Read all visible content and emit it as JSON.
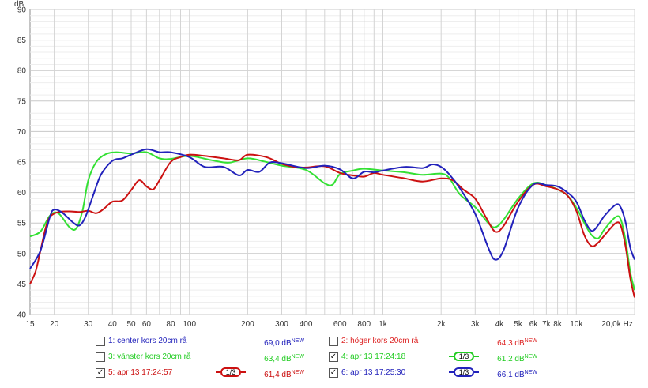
{
  "chart_data": {
    "type": "line",
    "ylabel": "dB",
    "xlabel": "",
    "x_scale": "log",
    "xlim": [
      15,
      20000
    ],
    "ylim": [
      40,
      90
    ],
    "grid": true,
    "y_ticks": [
      90,
      85,
      80,
      75,
      70,
      65,
      60,
      55,
      50,
      45,
      40
    ],
    "x_ticks": [
      {
        "v": 15,
        "t": "15"
      },
      {
        "v": 20,
        "t": "20"
      },
      {
        "v": 30,
        "t": "30"
      },
      {
        "v": 40,
        "t": "40"
      },
      {
        "v": 50,
        "t": "50"
      },
      {
        "v": 60,
        "t": "60"
      },
      {
        "v": 80,
        "t": "80"
      },
      {
        "v": 100,
        "t": "100"
      },
      {
        "v": 200,
        "t": "200"
      },
      {
        "v": 300,
        "t": "300"
      },
      {
        "v": 400,
        "t": "400"
      },
      {
        "v": 600,
        "t": "600"
      },
      {
        "v": 800,
        "t": "800"
      },
      {
        "v": 1000,
        "t": "1k"
      },
      {
        "v": 2000,
        "t": "2k"
      },
      {
        "v": 3000,
        "t": "3k"
      },
      {
        "v": 4000,
        "t": "4k"
      },
      {
        "v": 5000,
        "t": "5k"
      },
      {
        "v": 6000,
        "t": "6k"
      },
      {
        "v": 7000,
        "t": "7k"
      },
      {
        "v": 8000,
        "t": "8k"
      },
      {
        "v": 10000,
        "t": "10k"
      },
      {
        "v": 20000,
        "t": "20,0k Hz"
      }
    ],
    "series": [
      {
        "name": "3: vänster kors 20cm rå",
        "color": "#33e033",
        "points": [
          [
            15,
            52.8
          ],
          [
            17,
            53.6
          ],
          [
            19,
            56.2
          ],
          [
            21,
            56.6
          ],
          [
            24,
            54.3
          ],
          [
            26,
            54.1
          ],
          [
            28,
            57
          ],
          [
            30,
            62
          ],
          [
            33,
            65
          ],
          [
            37,
            66.3
          ],
          [
            42,
            66.6
          ],
          [
            50,
            66.4
          ],
          [
            60,
            66.6
          ],
          [
            70,
            65.6
          ],
          [
            80,
            65.5
          ],
          [
            100,
            66
          ],
          [
            130,
            65.3
          ],
          [
            160,
            64.9
          ],
          [
            200,
            65.6
          ],
          [
            250,
            65
          ],
          [
            300,
            64.4
          ],
          [
            400,
            63.7
          ],
          [
            500,
            61.5
          ],
          [
            550,
            61.3
          ],
          [
            600,
            63
          ],
          [
            700,
            63.6
          ],
          [
            800,
            63.9
          ],
          [
            1000,
            63.6
          ],
          [
            1300,
            63.3
          ],
          [
            1600,
            62.9
          ],
          [
            2000,
            63.1
          ],
          [
            2200,
            62.4
          ],
          [
            2500,
            59.7
          ],
          [
            3000,
            57.6
          ],
          [
            3500,
            55
          ],
          [
            3800,
            54.3
          ],
          [
            4200,
            55.5
          ],
          [
            5000,
            59
          ],
          [
            6000,
            61.5
          ],
          [
            7000,
            61.2
          ],
          [
            8000,
            60.5
          ],
          [
            9000,
            59.5
          ],
          [
            10000,
            57.5
          ],
          [
            11000,
            55
          ],
          [
            12000,
            53
          ],
          [
            13000,
            52.5
          ],
          [
            14000,
            54
          ],
          [
            16000,
            56
          ],
          [
            17000,
            55.5
          ],
          [
            18000,
            52
          ],
          [
            19000,
            47
          ],
          [
            20000,
            44
          ]
        ]
      },
      {
        "name": "5: apr 13 17:24:57",
        "color": "#cc1111",
        "points": [
          [
            15,
            45
          ],
          [
            16,
            47
          ],
          [
            17,
            50.5
          ],
          [
            18,
            54
          ],
          [
            19,
            56
          ],
          [
            21,
            56.8
          ],
          [
            24,
            56.9
          ],
          [
            27,
            56.8
          ],
          [
            30,
            57
          ],
          [
            33,
            56.6
          ],
          [
            36,
            57.3
          ],
          [
            40,
            58.5
          ],
          [
            45,
            58.7
          ],
          [
            50,
            60.4
          ],
          [
            55,
            62
          ],
          [
            60,
            61
          ],
          [
            65,
            60.5
          ],
          [
            70,
            62
          ],
          [
            80,
            65
          ],
          [
            90,
            65.8
          ],
          [
            100,
            66.2
          ],
          [
            120,
            66
          ],
          [
            150,
            65.6
          ],
          [
            180,
            65.3
          ],
          [
            200,
            66.2
          ],
          [
            250,
            65.8
          ],
          [
            300,
            64.7
          ],
          [
            350,
            64.2
          ],
          [
            400,
            64.1
          ],
          [
            500,
            64.3
          ],
          [
            600,
            63.2
          ],
          [
            700,
            62.8
          ],
          [
            800,
            62.6
          ],
          [
            900,
            63.2
          ],
          [
            1000,
            62.9
          ],
          [
            1300,
            62.3
          ],
          [
            1600,
            61.8
          ],
          [
            2000,
            62.3
          ],
          [
            2300,
            62
          ],
          [
            2600,
            60.5
          ],
          [
            3000,
            59
          ],
          [
            3400,
            56
          ],
          [
            3800,
            53.6
          ],
          [
            4200,
            54.5
          ],
          [
            5000,
            58.5
          ],
          [
            6000,
            61.3
          ],
          [
            7000,
            61
          ],
          [
            8000,
            60.5
          ],
          [
            9000,
            59.5
          ],
          [
            10000,
            57
          ],
          [
            11000,
            53
          ],
          [
            12000,
            51.2
          ],
          [
            13000,
            51.8
          ],
          [
            14000,
            53
          ],
          [
            16000,
            55
          ],
          [
            17000,
            54.5
          ],
          [
            18000,
            51
          ],
          [
            19000,
            46
          ],
          [
            20000,
            42.8
          ]
        ]
      },
      {
        "name": "6: apr 13 17:25:30",
        "color": "#2222bb",
        "points": [
          [
            15,
            47.5
          ],
          [
            17,
            50.5
          ],
          [
            19,
            56
          ],
          [
            20,
            57.2
          ],
          [
            22,
            56.7
          ],
          [
            25,
            55.1
          ],
          [
            27,
            54.6
          ],
          [
            29,
            56
          ],
          [
            32,
            59.8
          ],
          [
            35,
            63
          ],
          [
            40,
            65.2
          ],
          [
            45,
            65.6
          ],
          [
            50,
            66.2
          ],
          [
            60,
            67.1
          ],
          [
            70,
            66.6
          ],
          [
            80,
            66.6
          ],
          [
            100,
            65.8
          ],
          [
            120,
            64.2
          ],
          [
            150,
            64.2
          ],
          [
            180,
            62.8
          ],
          [
            200,
            63.7
          ],
          [
            230,
            63.4
          ],
          [
            260,
            64.9
          ],
          [
            300,
            64.8
          ],
          [
            400,
            64
          ],
          [
            500,
            64.4
          ],
          [
            600,
            63.8
          ],
          [
            700,
            62.3
          ],
          [
            800,
            63.4
          ],
          [
            900,
            63.3
          ],
          [
            1000,
            63.6
          ],
          [
            1300,
            64.2
          ],
          [
            1600,
            64
          ],
          [
            1800,
            64.6
          ],
          [
            2000,
            64.2
          ],
          [
            2200,
            63
          ],
          [
            2500,
            60.7
          ],
          [
            3000,
            56.5
          ],
          [
            3500,
            51
          ],
          [
            3800,
            49
          ],
          [
            4200,
            50.5
          ],
          [
            5000,
            57.5
          ],
          [
            6000,
            61.3
          ],
          [
            7000,
            61.2
          ],
          [
            8000,
            61
          ],
          [
            9000,
            60
          ],
          [
            10000,
            58.5
          ],
          [
            11000,
            55.5
          ],
          [
            12000,
            53.7
          ],
          [
            13000,
            54.7
          ],
          [
            14000,
            56.2
          ],
          [
            16000,
            58
          ],
          [
            17000,
            57.5
          ],
          [
            18000,
            55
          ],
          [
            19000,
            51
          ],
          [
            20000,
            49
          ]
        ]
      }
    ]
  },
  "legend": {
    "items": [
      {
        "label": "1: center kors 20cm rå",
        "checked": false,
        "db": "69,0 dB",
        "new": "NEW",
        "color": "#2222bb",
        "smooth": ""
      },
      {
        "label": "2: höger kors 20cm rå",
        "checked": false,
        "db": "64,3 dB",
        "new": "NEW",
        "color": "#dd2222",
        "smooth": ""
      },
      {
        "label": "3: vänster kors 20cm rå",
        "checked": false,
        "db": "63,4 dB",
        "new": "NEW",
        "color": "#22cc22",
        "smooth": ""
      },
      {
        "label": "4: apr 13 17:24:18",
        "checked": true,
        "db": "61,2 dB",
        "new": "NEW",
        "color": "#22cc22",
        "smooth": "1/3"
      },
      {
        "label": "5: apr 13 17:24:57",
        "checked": true,
        "db": "61,4 dB",
        "new": "NEW",
        "color": "#cc1111",
        "smooth": "1/3"
      },
      {
        "label": "6: apr 13 17:25:30",
        "checked": true,
        "db": "66,1 dB",
        "new": "NEW",
        "color": "#2222bb",
        "smooth": "1/3"
      }
    ]
  }
}
